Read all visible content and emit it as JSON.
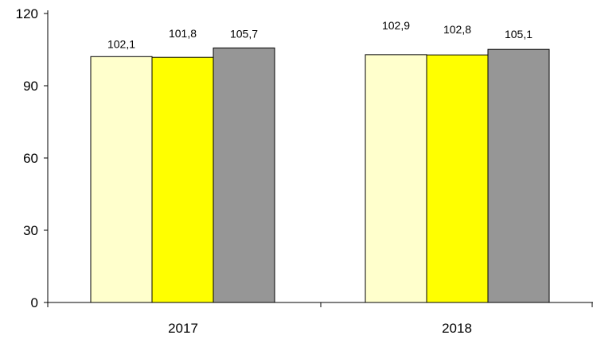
{
  "chart_data": {
    "type": "bar",
    "categories": [
      "2017",
      "2018"
    ],
    "series": [
      {
        "values": [
          102.1,
          102.9
        ],
        "labels": [
          "102,1",
          "102,9"
        ],
        "color": "#FFFFCC"
      },
      {
        "values": [
          101.8,
          102.8
        ],
        "labels": [
          "101,8",
          "102,8"
        ],
        "color": "#FFFF00"
      },
      {
        "values": [
          105.7,
          105.1
        ],
        "labels": [
          "105,7",
          "105,1"
        ],
        "color": "#969696"
      }
    ],
    "y_ticks": [
      "0",
      "30",
      "60",
      "90",
      "120"
    ],
    "ylim": [
      0,
      120
    ],
    "grid": false,
    "legend": "none"
  }
}
